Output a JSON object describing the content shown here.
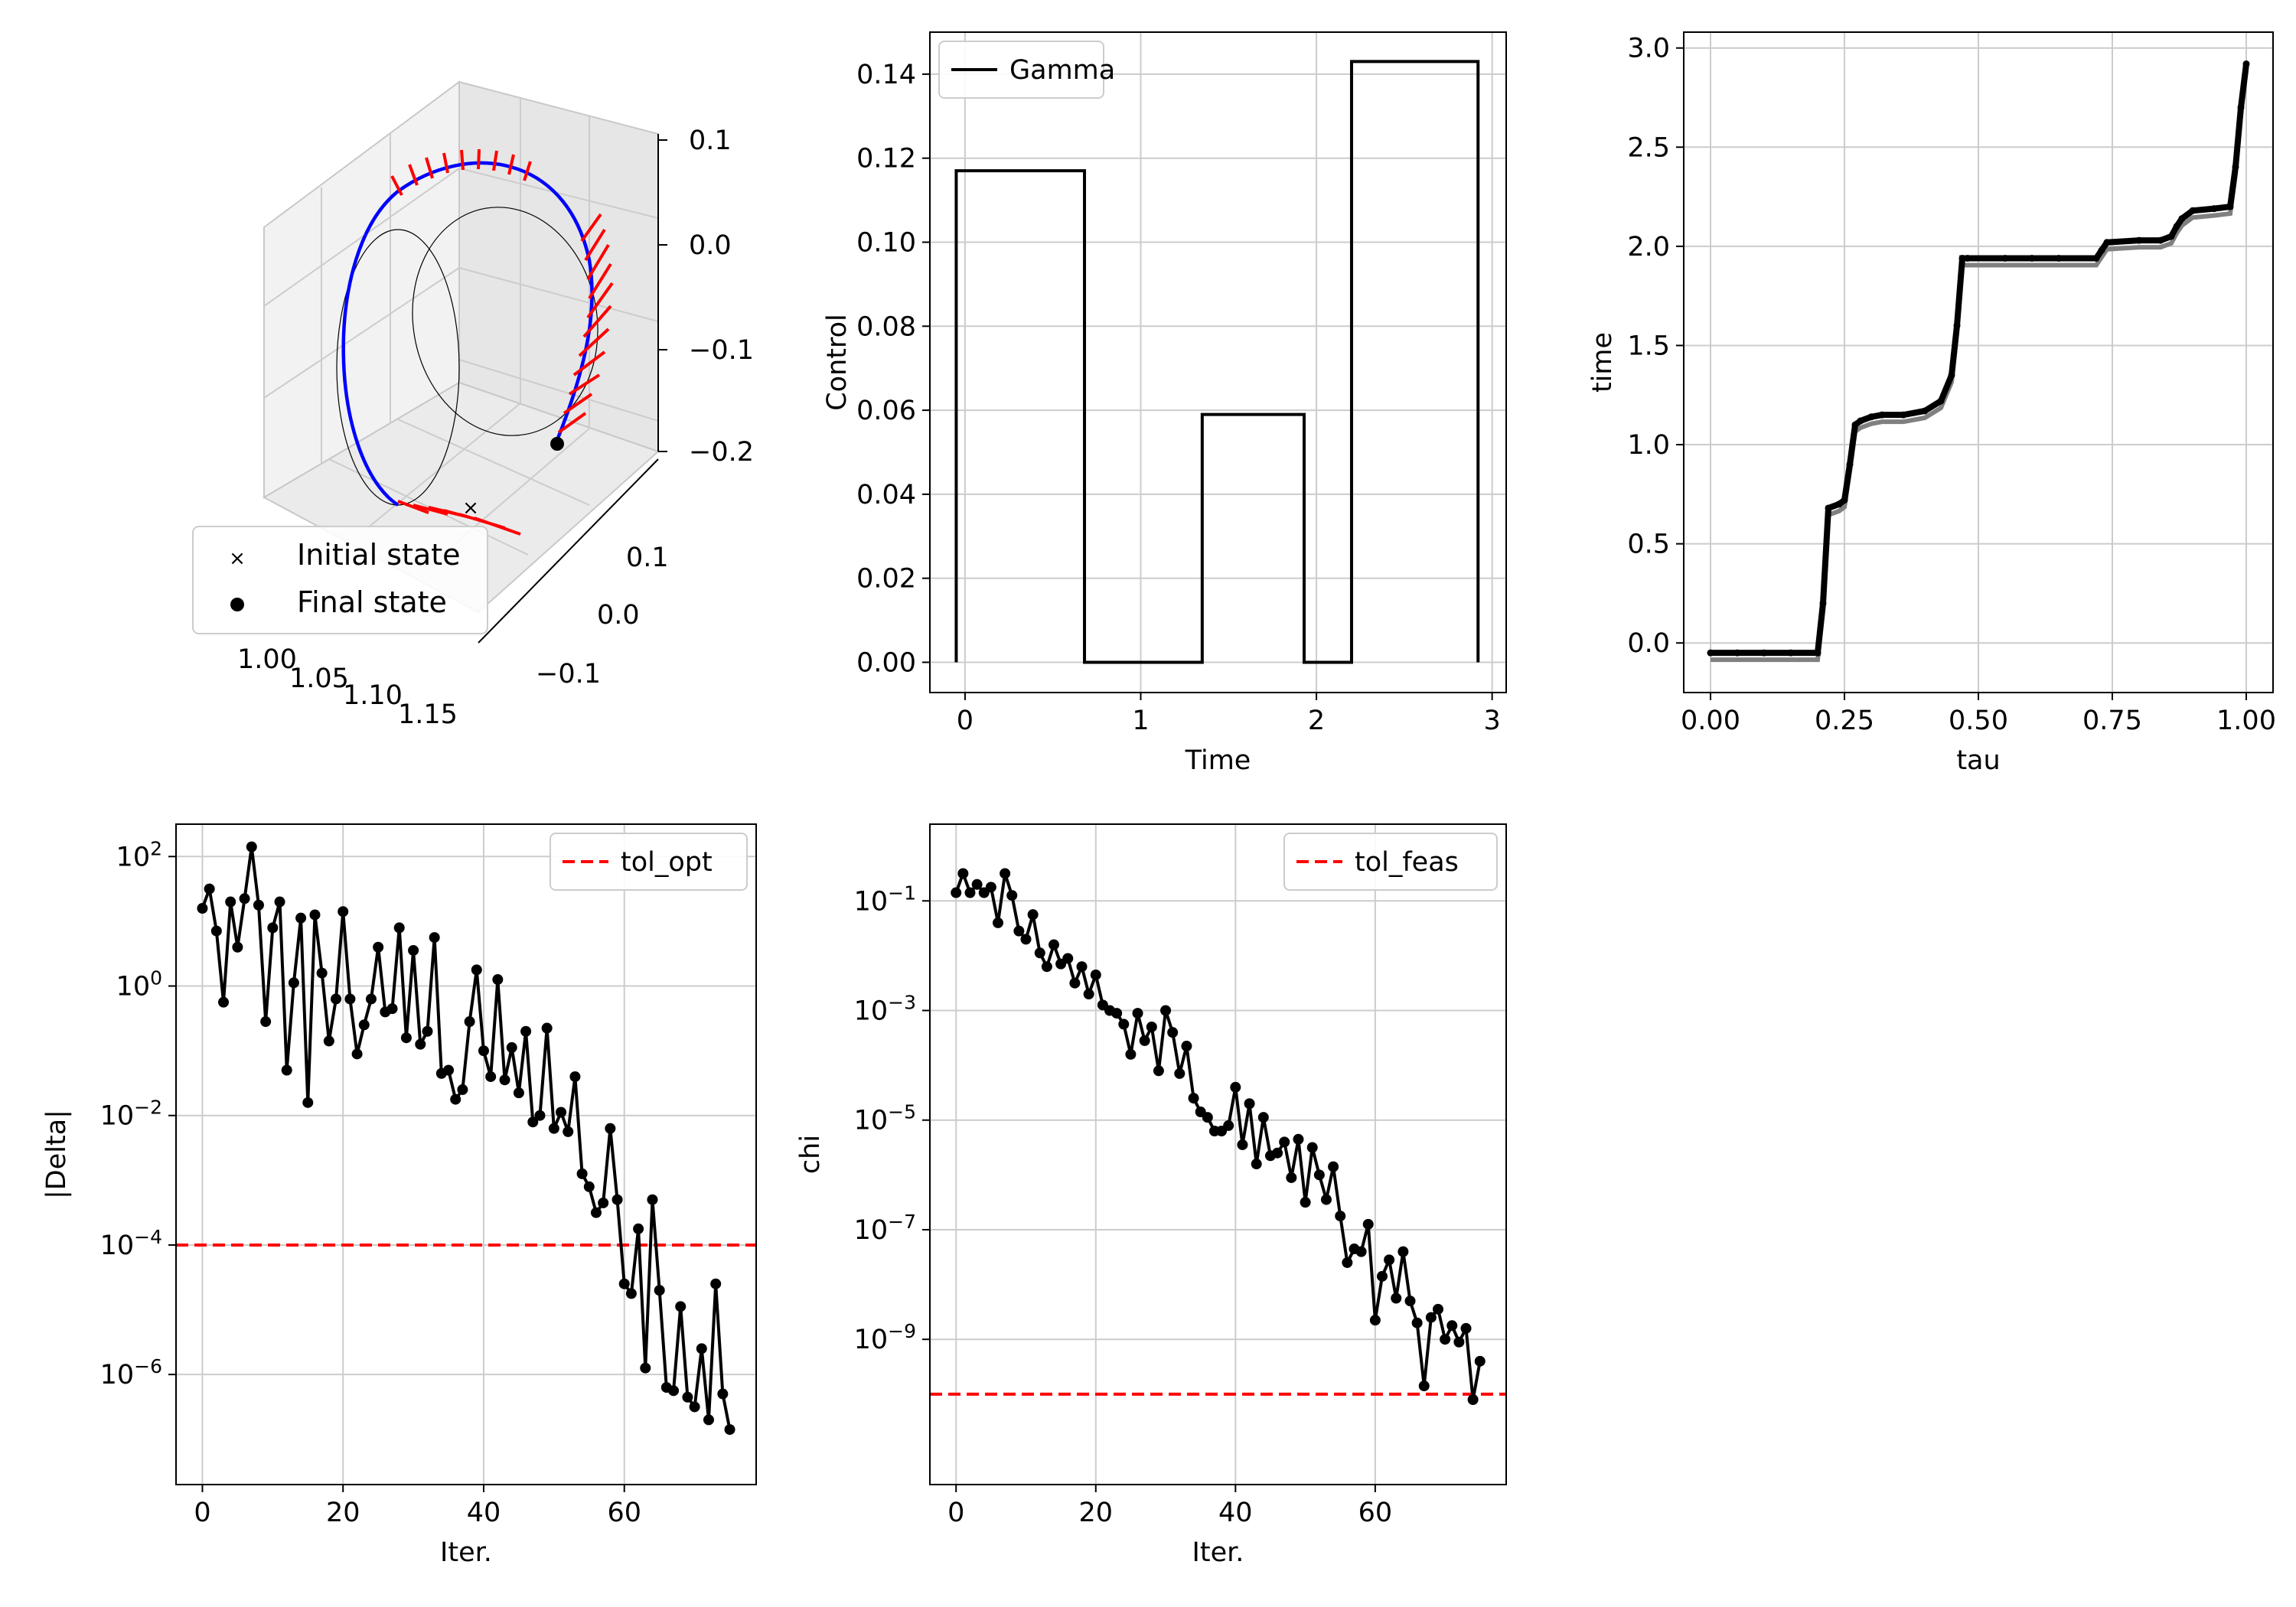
{
  "figure": {
    "background": "#ffffff",
    "grid_color": "#cccccc",
    "accent_red": "#ff0000",
    "accent_blue": "#0000ff"
  },
  "chart_data": [
    {
      "id": "trajectory3d",
      "type": "scatter",
      "title": "",
      "z_ticks": [
        "0.1",
        "0.0",
        "−0.1",
        "−0.2"
      ],
      "y_ticks": [
        "0.1",
        "0.0",
        "−0.1"
      ],
      "x_ticks": [
        "1.00",
        "1.05",
        "1.10",
        "1.15"
      ],
      "legend": {
        "placement": "lower-left",
        "entries": [
          "Initial state",
          "Final state"
        ]
      },
      "series": [
        {
          "color": "#0000ff"
        },
        {
          "color": "#000000"
        },
        {
          "color": "#ff0000"
        }
      ]
    },
    {
      "id": "control",
      "type": "line",
      "title": "",
      "xlabel": "Time",
      "ylabel": "Control",
      "xlim": [
        -0.2,
        3.08
      ],
      "ylim": [
        -0.0072,
        0.15
      ],
      "xticks": [
        0,
        1,
        2,
        3
      ],
      "yticks": [
        0.0,
        0.02,
        0.04,
        0.06,
        0.08,
        0.1,
        0.12,
        0.14
      ],
      "ytick_labels": [
        "0.00",
        "0.02",
        "0.04",
        "0.06",
        "0.08",
        "0.10",
        "0.12",
        "0.14"
      ],
      "grid": true,
      "legend": {
        "placement": "top-left",
        "entries": [
          "Gamma"
        ]
      },
      "series": [
        {
          "name": "Gamma",
          "color": "#000000",
          "x": [
            -0.05,
            -0.05,
            0.68,
            0.68,
            1.35,
            1.35,
            1.93,
            1.93,
            2.2,
            2.2,
            2.92,
            2.92
          ],
          "y": [
            0.0,
            0.117,
            0.117,
            0.0,
            0.0,
            0.059,
            0.059,
            0.0,
            0.0,
            0.143,
            0.143,
            0.0
          ]
        }
      ]
    },
    {
      "id": "time_vs_tau",
      "type": "line",
      "title": "",
      "xlabel": "tau",
      "ylabel": "time",
      "xlim": [
        -0.05,
        1.05
      ],
      "ylim": [
        -0.25,
        3.08
      ],
      "xticks": [
        0.0,
        0.25,
        0.5,
        0.75,
        1.0
      ],
      "xtick_labels": [
        "0.00",
        "0.25",
        "0.50",
        "0.75",
        "1.00"
      ],
      "yticks": [
        0.0,
        0.5,
        1.0,
        1.5,
        2.0,
        2.5,
        3.0
      ],
      "ytick_labels": [
        "0.0",
        "0.5",
        "1.0",
        "1.5",
        "2.0",
        "2.5",
        "3.0"
      ],
      "grid": true,
      "series": [
        {
          "color": "#000000",
          "x": [
            0.0,
            0.05,
            0.1,
            0.15,
            0.2,
            0.21,
            0.22,
            0.24,
            0.25,
            0.26,
            0.27,
            0.28,
            0.3,
            0.32,
            0.36,
            0.4,
            0.43,
            0.45,
            0.46,
            0.47,
            0.48,
            0.55,
            0.6,
            0.65,
            0.72,
            0.73,
            0.74,
            0.8,
            0.84,
            0.86,
            0.87,
            0.88,
            0.9,
            0.94,
            0.97,
            0.98,
            0.99,
            1.0
          ],
          "y": [
            -0.05,
            -0.05,
            -0.05,
            -0.05,
            -0.05,
            0.2,
            0.68,
            0.7,
            0.72,
            0.9,
            1.1,
            1.12,
            1.14,
            1.15,
            1.15,
            1.17,
            1.22,
            1.35,
            1.6,
            1.94,
            1.94,
            1.94,
            1.94,
            1.94,
            1.94,
            1.98,
            2.02,
            2.03,
            2.03,
            2.05,
            2.1,
            2.14,
            2.18,
            2.19,
            2.2,
            2.4,
            2.7,
            2.92
          ]
        }
      ]
    },
    {
      "id": "delta_history",
      "type": "line",
      "title": "",
      "xlabel": "Iter.",
      "ylabel": "|Delta|",
      "yscale": "log",
      "xlim": [
        -3.75,
        78.75
      ],
      "ylim_log10": [
        -7.7,
        2.5
      ],
      "xticks": [
        0,
        20,
        40,
        60
      ],
      "ytick_exponents": [
        2,
        0,
        -2,
        -4,
        -6
      ],
      "ytick_labels": [
        "10",
        "10",
        "10",
        "10",
        "10"
      ],
      "ytick_exponent_labels": [
        "2",
        "0",
        "−2",
        "−4",
        "−6"
      ],
      "grid": true,
      "legend": {
        "placement": "top-right",
        "entries": [
          "tol_opt"
        ]
      },
      "threshold": {
        "name": "tol_opt",
        "value": 0.0001,
        "color": "#ff0000",
        "style": "dashed"
      },
      "series": [
        {
          "color": "#000000",
          "x": [
            0,
            1,
            2,
            3,
            4,
            5,
            6,
            7,
            8,
            9,
            10,
            11,
            12,
            13,
            14,
            15,
            16,
            17,
            18,
            19,
            20,
            21,
            22,
            23,
            24,
            25,
            26,
            27,
            28,
            29,
            30,
            31,
            32,
            33,
            34,
            35,
            36,
            37,
            38,
            39,
            40,
            41,
            42,
            43,
            44,
            45,
            46,
            47,
            48,
            49,
            50,
            51,
            52,
            53,
            54,
            55,
            56,
            57,
            58,
            59,
            60,
            61,
            62,
            63,
            64,
            65,
            66,
            67,
            68,
            69,
            70,
            71,
            72,
            73,
            74,
            75
          ],
          "log10_y": [
            1.2,
            1.5,
            0.85,
            -0.25,
            1.3,
            0.6,
            1.35,
            2.15,
            1.25,
            -0.55,
            0.9,
            1.3,
            -1.3,
            0.05,
            1.05,
            -1.8,
            1.1,
            0.2,
            -0.85,
            -0.2,
            1.15,
            -0.2,
            -1.05,
            -0.6,
            -0.2,
            0.6,
            -0.4,
            -0.35,
            0.9,
            -0.8,
            0.55,
            -0.9,
            -0.7,
            0.75,
            -1.35,
            -1.3,
            -1.75,
            -1.6,
            -0.55,
            0.25,
            -1.0,
            -1.4,
            0.1,
            -1.45,
            -0.95,
            -1.65,
            -0.7,
            -2.1,
            -2.0,
            -0.65,
            -2.2,
            -1.95,
            -2.25,
            -1.4,
            -2.9,
            -3.1,
            -3.5,
            -3.35,
            -2.2,
            -3.3,
            -4.6,
            -4.75,
            -3.75,
            -5.9,
            -3.3,
            -4.7,
            -6.2,
            -6.25,
            -4.95,
            -6.35,
            -6.5,
            -5.6,
            -6.7,
            -4.6,
            -6.3,
            -6.85
          ]
        }
      ]
    },
    {
      "id": "chi_history",
      "type": "line",
      "title": "",
      "xlabel": "Iter.",
      "ylabel": "chi",
      "yscale": "log",
      "xlim": [
        -3.75,
        78.75
      ],
      "ylim_log10": [
        -11.65,
        0.4
      ],
      "xticks": [
        0,
        20,
        40,
        60
      ],
      "ytick_exponents": [
        -1,
        -3,
        -5,
        -7,
        -9
      ],
      "ytick_labels": [
        "10",
        "10",
        "10",
        "10",
        "10"
      ],
      "ytick_exponent_labels": [
        "−1",
        "−3",
        "−5",
        "−7",
        "−9"
      ],
      "grid": true,
      "legend": {
        "placement": "top-right",
        "entries": [
          "tol_feas"
        ]
      },
      "threshold": {
        "name": "tol_feas",
        "value": 1e-10,
        "color": "#ff0000",
        "style": "dashed"
      },
      "series": [
        {
          "color": "#000000",
          "x": [
            0,
            1,
            2,
            3,
            4,
            5,
            6,
            7,
            8,
            9,
            10,
            11,
            12,
            13,
            14,
            15,
            16,
            17,
            18,
            19,
            20,
            21,
            22,
            23,
            24,
            25,
            26,
            27,
            28,
            29,
            30,
            31,
            32,
            33,
            34,
            35,
            36,
            37,
            38,
            39,
            40,
            41,
            42,
            43,
            44,
            45,
            46,
            47,
            48,
            49,
            50,
            51,
            52,
            53,
            54,
            55,
            56,
            57,
            58,
            59,
            60,
            61,
            62,
            63,
            64,
            65,
            66,
            67,
            68,
            69,
            70,
            71,
            72,
            73,
            74,
            75
          ],
          "log10_y": [
            -0.85,
            -0.5,
            -0.85,
            -0.7,
            -0.85,
            -0.75,
            -1.4,
            -0.5,
            -0.9,
            -1.55,
            -1.7,
            -1.25,
            -1.95,
            -2.2,
            -1.8,
            -2.15,
            -2.05,
            -2.5,
            -2.2,
            -2.7,
            -2.35,
            -2.9,
            -3.0,
            -3.05,
            -3.25,
            -3.8,
            -3.05,
            -3.55,
            -3.3,
            -4.1,
            -3.0,
            -3.4,
            -4.15,
            -3.65,
            -4.6,
            -4.85,
            -4.95,
            -5.2,
            -5.2,
            -5.1,
            -4.4,
            -5.45,
            -4.7,
            -5.8,
            -4.95,
            -5.65,
            -5.6,
            -5.4,
            -6.05,
            -5.35,
            -6.5,
            -5.5,
            -6.0,
            -6.45,
            -5.85,
            -6.75,
            -7.6,
            -7.35,
            -7.4,
            -6.9,
            -8.65,
            -7.85,
            -7.55,
            -8.25,
            -7.4,
            -8.3,
            -8.7,
            -9.85,
            -8.6,
            -8.45,
            -9.0,
            -8.75,
            -9.05,
            -8.8,
            -10.1,
            -9.4
          ]
        }
      ]
    }
  ]
}
